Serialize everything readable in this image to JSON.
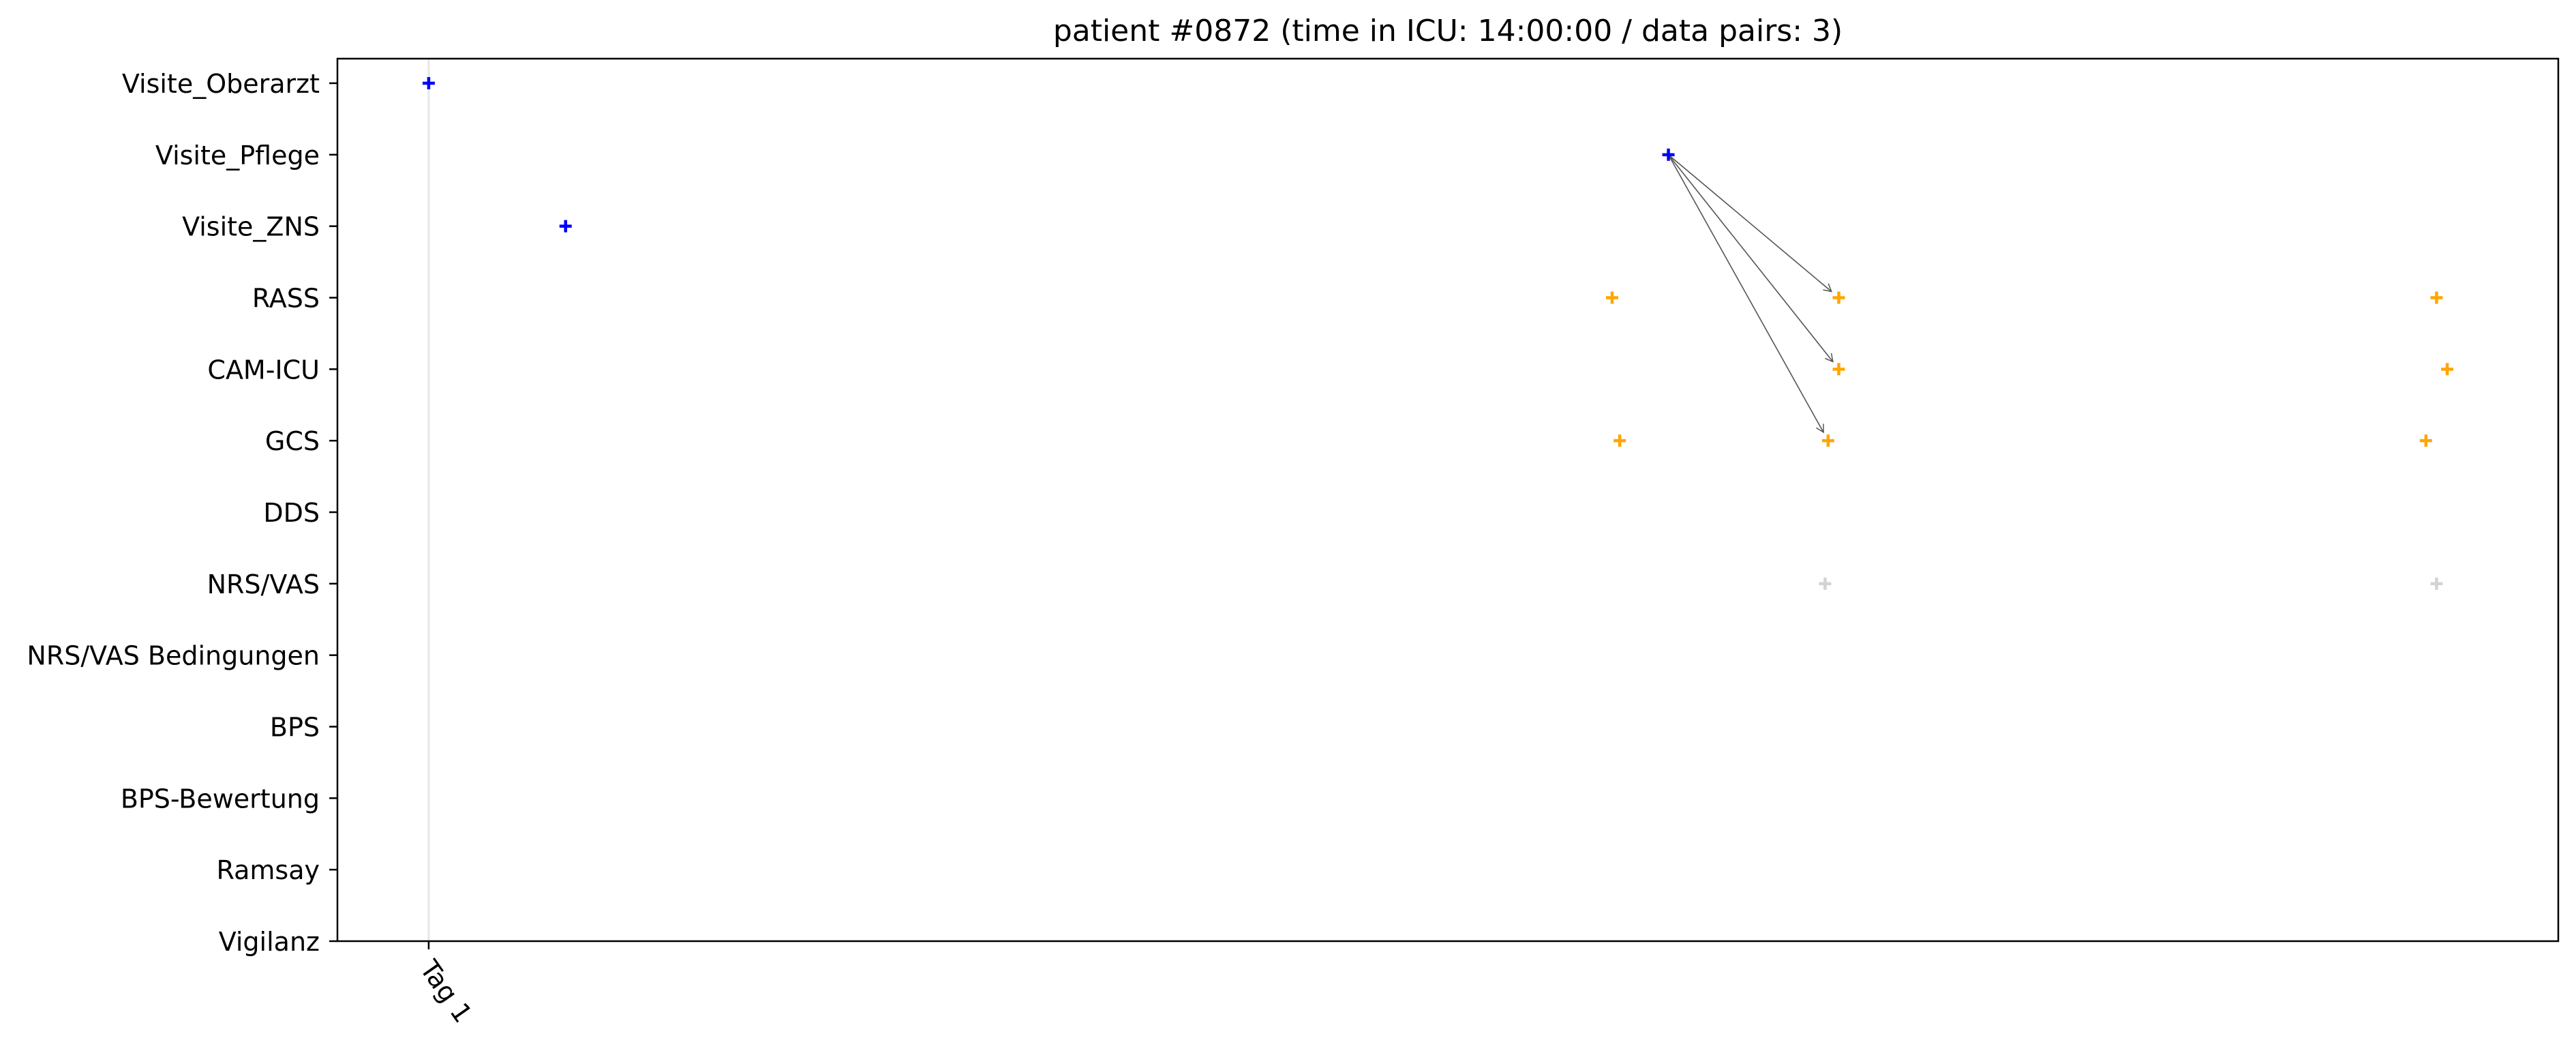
{
  "chart_data": {
    "type": "scatter",
    "title": "patient #0872 (time in ICU: 14:00:00 / data pairs: 3)",
    "categories": [
      "Visite_Oberarzt",
      "Visite_Pflege",
      "Visite_ZNS",
      "RASS",
      "CAM-ICU",
      "GCS",
      "DDS",
      "NRS/VAS",
      "NRS/VAS Bedingungen",
      "BPS",
      "BPS-Bewertung",
      "Ramsay",
      "Vigilanz"
    ],
    "x_ticks": [
      {
        "label": "Tag 1",
        "value": 0.0
      }
    ],
    "x_unit": "hours since admission",
    "xlim": [
      -0.6,
      14.0
    ],
    "grid": false,
    "series": [
      {
        "color": "#0000ff",
        "points": [
          {
            "x": 0.0,
            "category": "Visite_Oberarzt"
          },
          {
            "x": 0.9,
            "category": "Visite_ZNS"
          },
          {
            "x": 8.15,
            "category": "Visite_Pflege"
          }
        ]
      },
      {
        "color": "#ffa500",
        "points": [
          {
            "x": 7.78,
            "category": "RASS"
          },
          {
            "x": 9.27,
            "category": "RASS"
          },
          {
            "x": 13.2,
            "category": "RASS"
          },
          {
            "x": 9.27,
            "category": "CAM-ICU"
          },
          {
            "x": 13.27,
            "category": "CAM-ICU"
          },
          {
            "x": 7.83,
            "category": "GCS"
          },
          {
            "x": 9.2,
            "category": "GCS"
          },
          {
            "x": 13.13,
            "category": "GCS"
          }
        ]
      },
      {
        "color": "#d3d3d3",
        "points": [
          {
            "x": 9.18,
            "category": "NRS/VAS"
          },
          {
            "x": 13.2,
            "category": "NRS/VAS"
          }
        ]
      }
    ],
    "pairs": [
      {
        "from": {
          "x": 8.15,
          "category": "Visite_Pflege"
        },
        "to": {
          "x": 9.27,
          "category": "RASS"
        }
      },
      {
        "from": {
          "x": 8.15,
          "category": "Visite_Pflege"
        },
        "to": {
          "x": 9.27,
          "category": "CAM-ICU"
        }
      },
      {
        "from": {
          "x": 8.15,
          "category": "Visite_Pflege"
        },
        "to": {
          "x": 9.2,
          "category": "GCS"
        }
      }
    ]
  }
}
